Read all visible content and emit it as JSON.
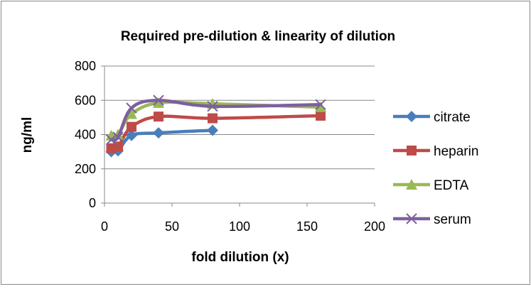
{
  "chart_data": {
    "type": "line",
    "title": "Required pre-dilution & linearity of dilution",
    "xlabel": "fold dilution (x)",
    "ylabel": "ng/ml",
    "xlim": [
      0,
      200
    ],
    "ylim": [
      0,
      800
    ],
    "xticks": [
      0,
      50,
      100,
      150,
      200
    ],
    "yticks": [
      0,
      200,
      400,
      600,
      800
    ],
    "grid": "horizontal",
    "legend_position": "right",
    "series": [
      {
        "name": "citrate",
        "color": "#4A7EBB",
        "marker": "diamond",
        "x": [
          5,
          10,
          20,
          40,
          80
        ],
        "y": [
          300,
          305,
          395,
          410,
          425
        ]
      },
      {
        "name": "heparin",
        "color": "#BE4B48",
        "marker": "square",
        "x": [
          5,
          10,
          20,
          40,
          80,
          160
        ],
        "y": [
          320,
          330,
          445,
          505,
          495,
          510
        ]
      },
      {
        "name": "EDTA",
        "color": "#98B954",
        "marker": "triangle",
        "x": [
          5,
          10,
          20,
          40,
          80,
          160
        ],
        "y": [
          395,
          400,
          520,
          585,
          580,
          560
        ]
      },
      {
        "name": "serum",
        "color": "#7D60A0",
        "marker": "x",
        "x": [
          5,
          10,
          20,
          40,
          80,
          160
        ],
        "y": [
          370,
          385,
          555,
          600,
          565,
          575
        ]
      }
    ]
  }
}
